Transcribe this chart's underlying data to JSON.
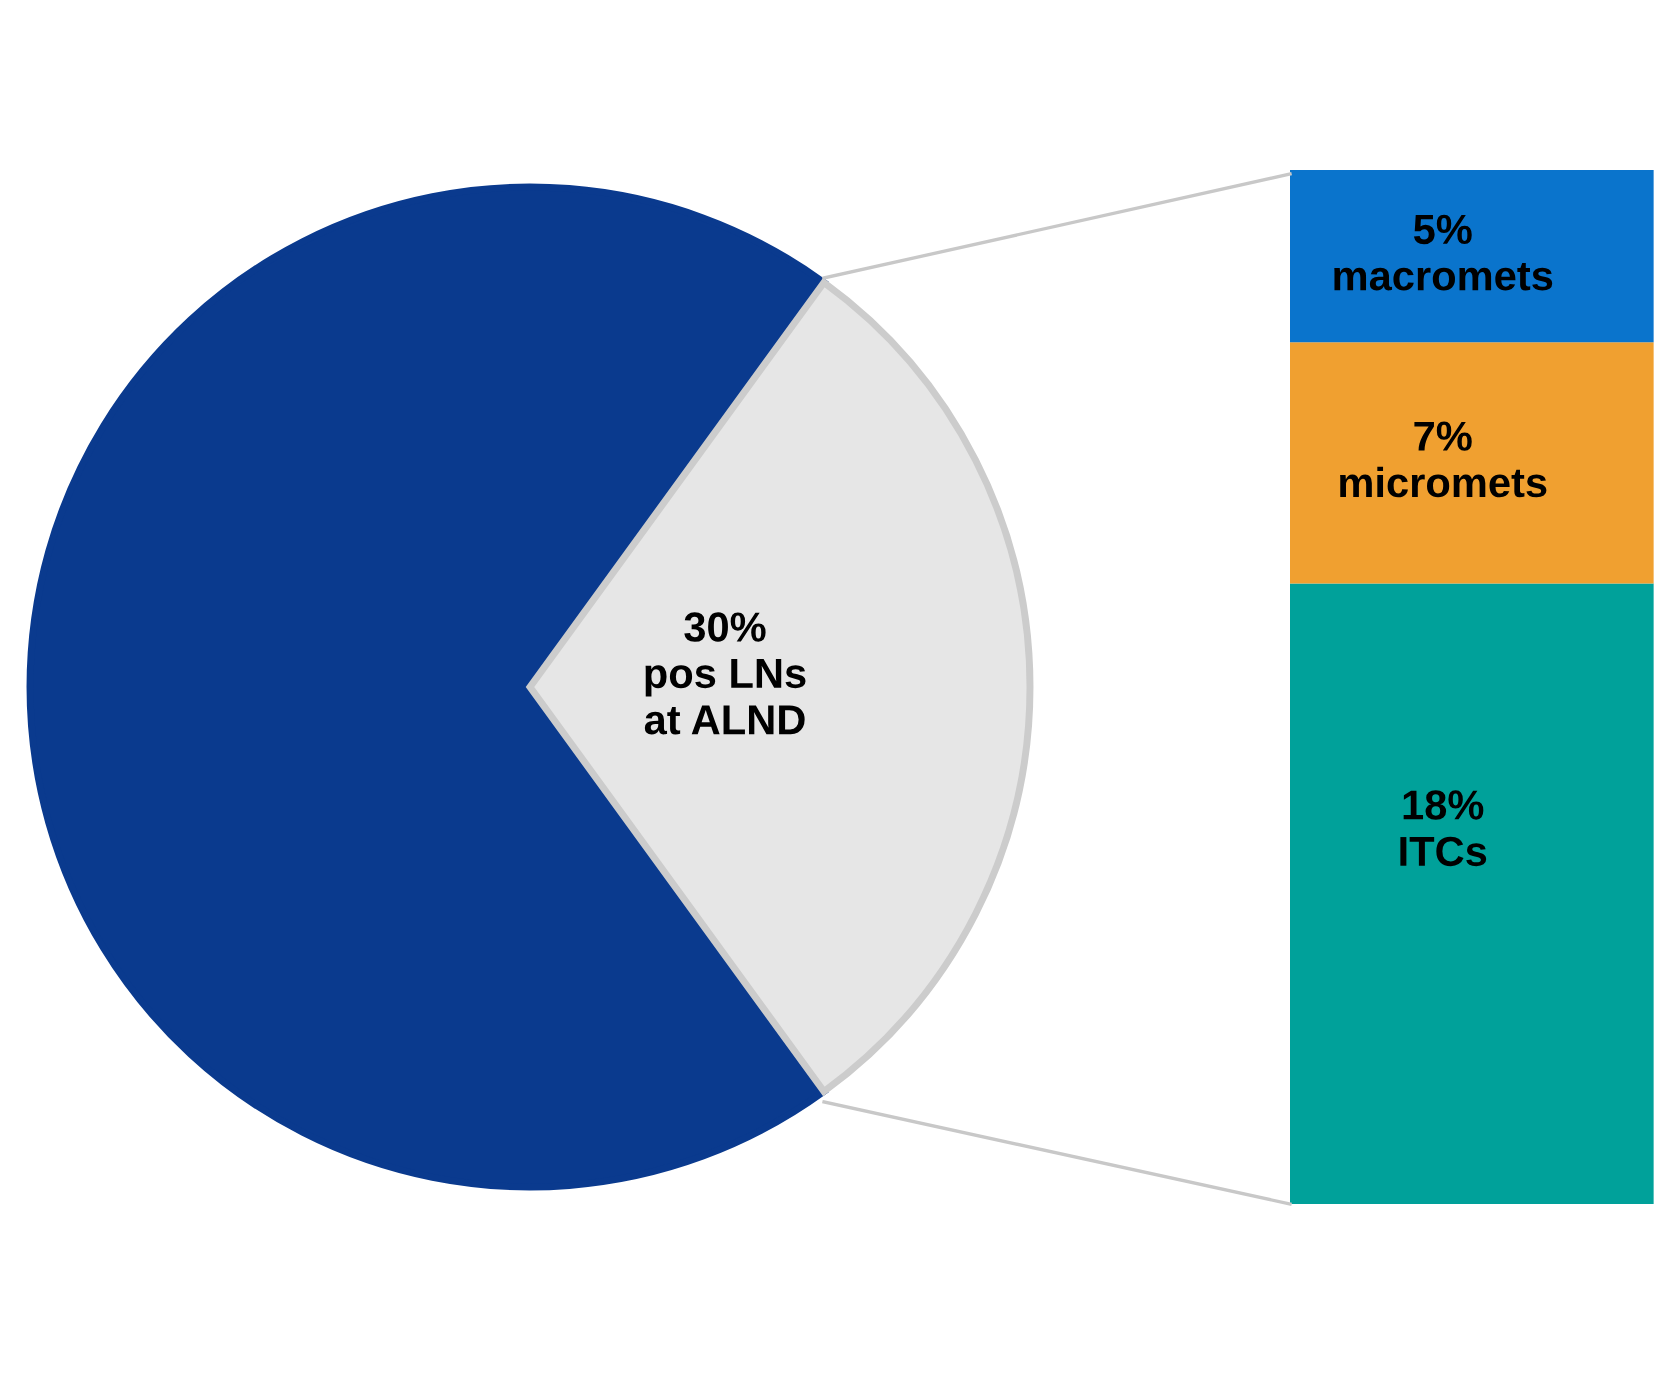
{
  "chart_data": [
    {
      "type": "pie",
      "categories": [
        null,
        "pos LNs\nat ALND"
      ],
      "values": [
        70,
        30
      ],
      "colors": [
        "#0a3a8e",
        "#e6e6e6"
      ],
      "value_labels": [
        null,
        "30%"
      ]
    },
    {
      "type": "bar",
      "stacked": true,
      "categories": [
        null
      ],
      "series": [
        {
          "name": "ITCs",
          "color": "#00a19a",
          "values": [
            18
          ],
          "value_labels": [
            "18%"
          ]
        },
        {
          "name": "micromets",
          "color": "#f0a030",
          "values": [
            7
          ],
          "value_labels": [
            "7%"
          ]
        },
        {
          "name": "macromets",
          "color": "#0a74cc",
          "values": [
            5
          ],
          "value_labels": [
            "5%"
          ]
        }
      ]
    }
  ]
}
